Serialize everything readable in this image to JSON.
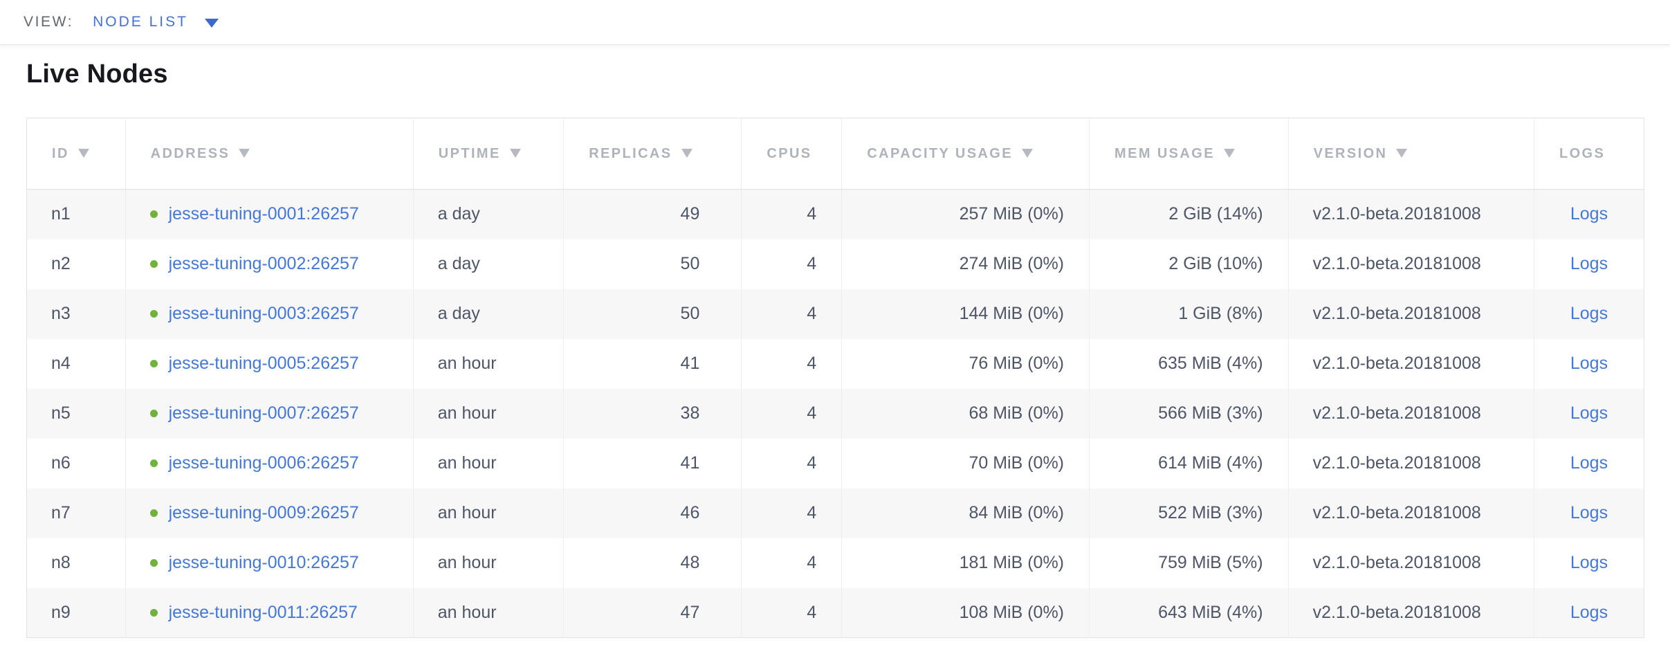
{
  "view_bar": {
    "label": "VIEW:",
    "selected_view": "NODE LIST"
  },
  "page": {
    "title": "Live Nodes"
  },
  "colors": {
    "link": "#4377d8",
    "live_dot": "#71b23a",
    "view_link": "#4272d6",
    "header_text": "#aeb3ba",
    "body_text": "#4d5566"
  },
  "table": {
    "columns": [
      {
        "key": "id",
        "label": "ID",
        "sortable": true,
        "align": "left"
      },
      {
        "key": "address",
        "label": "ADDRESS",
        "sortable": true,
        "align": "left"
      },
      {
        "key": "uptime",
        "label": "UPTIME",
        "sortable": true,
        "align": "left"
      },
      {
        "key": "replicas",
        "label": "REPLICAS",
        "sortable": true,
        "align": "right",
        "pad_wide": true
      },
      {
        "key": "cpus",
        "label": "CPUS",
        "sortable": false,
        "align": "right"
      },
      {
        "key": "capacity",
        "label": "CAPACITY USAGE",
        "sortable": true,
        "align": "right"
      },
      {
        "key": "mem",
        "label": "MEM USAGE",
        "sortable": true,
        "align": "right"
      },
      {
        "key": "version",
        "label": "VERSION",
        "sortable": true,
        "align": "left"
      },
      {
        "key": "logs",
        "label": "LOGS",
        "sortable": false,
        "align": "center"
      }
    ],
    "rows": [
      {
        "id": "n1",
        "status": "live",
        "address": "jesse-tuning-0001:26257",
        "uptime": "a day",
        "replicas": "49",
        "cpus": "4",
        "capacity": "257 MiB (0%)",
        "mem": "2 GiB (14%)",
        "version": "v2.1.0-beta.20181008",
        "logs": "Logs"
      },
      {
        "id": "n2",
        "status": "live",
        "address": "jesse-tuning-0002:26257",
        "uptime": "a day",
        "replicas": "50",
        "cpus": "4",
        "capacity": "274 MiB (0%)",
        "mem": "2 GiB (10%)",
        "version": "v2.1.0-beta.20181008",
        "logs": "Logs"
      },
      {
        "id": "n3",
        "status": "live",
        "address": "jesse-tuning-0003:26257",
        "uptime": "a day",
        "replicas": "50",
        "cpus": "4",
        "capacity": "144 MiB (0%)",
        "mem": "1 GiB (8%)",
        "version": "v2.1.0-beta.20181008",
        "logs": "Logs"
      },
      {
        "id": "n4",
        "status": "live",
        "address": "jesse-tuning-0005:26257",
        "uptime": "an hour",
        "replicas": "41",
        "cpus": "4",
        "capacity": "76 MiB (0%)",
        "mem": "635 MiB (4%)",
        "version": "v2.1.0-beta.20181008",
        "logs": "Logs"
      },
      {
        "id": "n5",
        "status": "live",
        "address": "jesse-tuning-0007:26257",
        "uptime": "an hour",
        "replicas": "38",
        "cpus": "4",
        "capacity": "68 MiB (0%)",
        "mem": "566 MiB (3%)",
        "version": "v2.1.0-beta.20181008",
        "logs": "Logs"
      },
      {
        "id": "n6",
        "status": "live",
        "address": "jesse-tuning-0006:26257",
        "uptime": "an hour",
        "replicas": "41",
        "cpus": "4",
        "capacity": "70 MiB (0%)",
        "mem": "614 MiB (4%)",
        "version": "v2.1.0-beta.20181008",
        "logs": "Logs"
      },
      {
        "id": "n7",
        "status": "live",
        "address": "jesse-tuning-0009:26257",
        "uptime": "an hour",
        "replicas": "46",
        "cpus": "4",
        "capacity": "84 MiB (0%)",
        "mem": "522 MiB (3%)",
        "version": "v2.1.0-beta.20181008",
        "logs": "Logs"
      },
      {
        "id": "n8",
        "status": "live",
        "address": "jesse-tuning-0010:26257",
        "uptime": "an hour",
        "replicas": "48",
        "cpus": "4",
        "capacity": "181 MiB (0%)",
        "mem": "759 MiB (5%)",
        "version": "v2.1.0-beta.20181008",
        "logs": "Logs"
      },
      {
        "id": "n9",
        "status": "live",
        "address": "jesse-tuning-0011:26257",
        "uptime": "an hour",
        "replicas": "47",
        "cpus": "4",
        "capacity": "108 MiB (0%)",
        "mem": "643 MiB (4%)",
        "version": "v2.1.0-beta.20181008",
        "logs": "Logs"
      }
    ]
  }
}
